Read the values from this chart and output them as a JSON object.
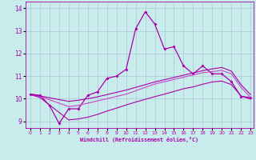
{
  "xlabel": "Windchill (Refroidissement éolien,°C)",
  "bg_color": "#c8ecec",
  "line_color1": "#aa00aa",
  "line_color2": "#cc44cc",
  "grid_color": "#aabbcc",
  "xlim": [
    -0.5,
    23.3
  ],
  "ylim": [
    8.7,
    14.3
  ],
  "yticks": [
    9,
    10,
    11,
    12,
    13,
    14
  ],
  "xticks": [
    0,
    1,
    2,
    3,
    4,
    5,
    6,
    7,
    8,
    9,
    10,
    11,
    12,
    13,
    14,
    15,
    16,
    17,
    18,
    19,
    20,
    21,
    22,
    23
  ],
  "series1_x": [
    0,
    1,
    2,
    3,
    4,
    5,
    6,
    7,
    8,
    9,
    10,
    11,
    12,
    13,
    14,
    15,
    16,
    17,
    18,
    19,
    20,
    21,
    22,
    23
  ],
  "series1_y": [
    10.2,
    10.15,
    9.7,
    8.9,
    9.55,
    9.55,
    10.15,
    10.3,
    10.9,
    11.0,
    11.3,
    13.1,
    13.85,
    13.3,
    12.2,
    12.3,
    11.45,
    11.1,
    11.45,
    11.1,
    11.1,
    10.75,
    10.1,
    10.05
  ],
  "series2_x": [
    0,
    1,
    2,
    3,
    4,
    5,
    6,
    7,
    8,
    9,
    10,
    11,
    12,
    13,
    14,
    15,
    16,
    17,
    18,
    19,
    20,
    21,
    22,
    23
  ],
  "series2_y": [
    10.2,
    10.1,
    9.95,
    9.8,
    9.65,
    9.7,
    9.8,
    9.9,
    10.0,
    10.1,
    10.2,
    10.35,
    10.5,
    10.65,
    10.75,
    10.85,
    10.95,
    11.05,
    11.15,
    11.2,
    11.25,
    11.1,
    10.5,
    10.05
  ],
  "series3_x": [
    0,
    1,
    2,
    3,
    4,
    5,
    6,
    7,
    8,
    9,
    10,
    11,
    12,
    13,
    14,
    15,
    16,
    17,
    18,
    19,
    20,
    21,
    22,
    23
  ],
  "series3_y": [
    10.2,
    10.12,
    10.04,
    9.96,
    9.88,
    9.93,
    10.0,
    10.08,
    10.18,
    10.28,
    10.38,
    10.5,
    10.62,
    10.74,
    10.84,
    10.94,
    11.04,
    11.14,
    11.24,
    11.32,
    11.38,
    11.22,
    10.62,
    10.18
  ],
  "series4_x": [
    0,
    1,
    2,
    3,
    4,
    5,
    6,
    7,
    8,
    9,
    10,
    11,
    12,
    13,
    14,
    15,
    16,
    17,
    18,
    19,
    20,
    21,
    22,
    23
  ],
  "series4_y": [
    10.18,
    10.05,
    9.72,
    9.39,
    9.06,
    9.1,
    9.18,
    9.3,
    9.45,
    9.58,
    9.72,
    9.85,
    9.97,
    10.09,
    10.2,
    10.32,
    10.44,
    10.52,
    10.64,
    10.74,
    10.78,
    10.62,
    10.12,
    9.98
  ]
}
